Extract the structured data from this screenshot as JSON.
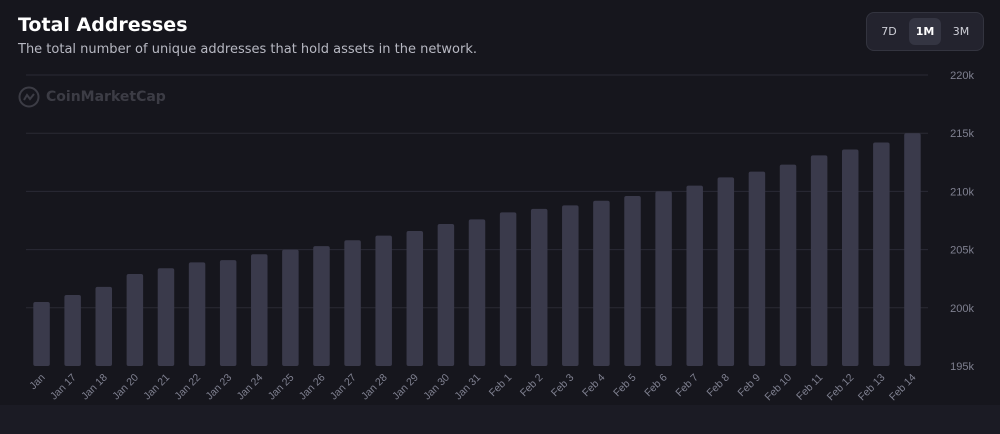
{
  "header": {
    "title": "Total Addresses",
    "subtitle": "The total number of unique addresses that hold assets in the network."
  },
  "range_selector": {
    "options": [
      "7D",
      "1M",
      "3M"
    ],
    "selected": "1M"
  },
  "watermark": {
    "text": "CoinMarketCap"
  },
  "colors": {
    "background": "#16161d",
    "bar": "#3a3a4b",
    "grid": "#2a2a35",
    "tick_text": "#7f8090"
  },
  "chart_data": {
    "type": "bar",
    "title": "Total Addresses",
    "categories": [
      "Jan",
      "Jan 17",
      "Jan 18",
      "Jan 20",
      "Jan 21",
      "Jan 22",
      "Jan 23",
      "Jan 24",
      "Jan 25",
      "Jan 26",
      "Jan 27",
      "Jan 28",
      "Jan 29",
      "Jan 30",
      "Jan 31",
      "Feb 1",
      "Feb 2",
      "Feb 3",
      "Feb 4",
      "Feb 5",
      "Feb 6",
      "Feb 7",
      "Feb 8",
      "Feb 9",
      "Feb 10",
      "Feb 11",
      "Feb 12",
      "Feb 13",
      "Feb 14"
    ],
    "values": [
      200500,
      201100,
      201800,
      202900,
      203400,
      203900,
      204100,
      204600,
      205000,
      205300,
      205800,
      206200,
      206600,
      207200,
      207600,
      208200,
      208500,
      208800,
      209200,
      209600,
      210000,
      210500,
      211200,
      211700,
      212300,
      213100,
      213600,
      214200,
      215000
    ],
    "ylim": [
      195000,
      220000
    ],
    "yticks": [
      195000,
      200000,
      205000,
      210000,
      215000,
      220000
    ],
    "ytick_labels": [
      "195k",
      "200k",
      "205k",
      "210k",
      "215k",
      "220k"
    ],
    "y_axis_position": "right",
    "grid": true
  }
}
